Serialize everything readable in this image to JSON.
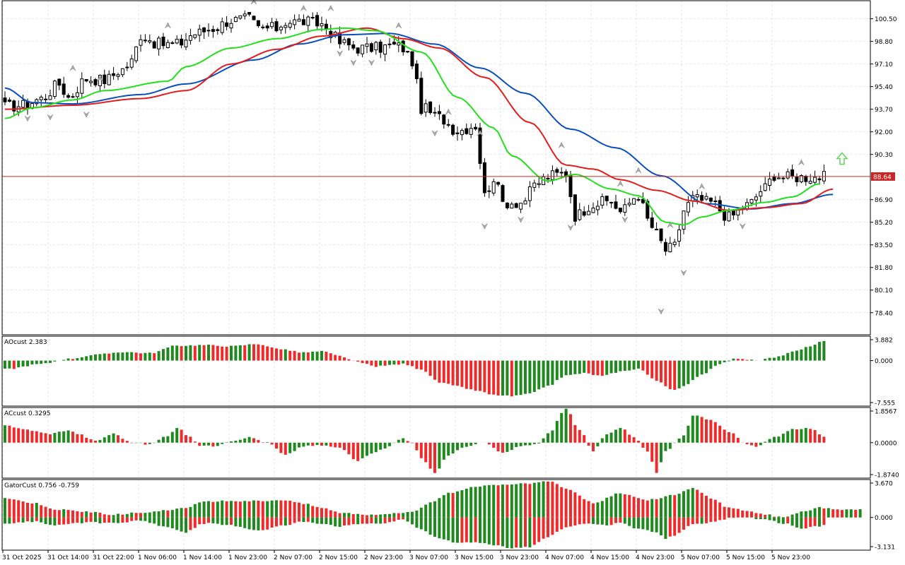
{
  "colors": {
    "background": "#ffffff",
    "grid": "#e6e6e6",
    "frame": "#000000",
    "bull_candle": "#ffffff",
    "bear_candle": "#000000",
    "jaw": "#0b4fbf",
    "teeth": "#e21d1d",
    "lips": "#22e01b",
    "osc_up": "#1e8a1e",
    "osc_down": "#ee2a2a",
    "price_line": "#c62828",
    "fractal": "#a8a8a8",
    "signal_arrow": "#5fd35f"
  },
  "chart_data": [
    {
      "type": "candlestick",
      "title": "",
      "current_price": 88.64,
      "current_price_label": "88.64",
      "signal": "up-arrow",
      "ylim": [
        76.9,
        101.7
      ],
      "y_ticks": [
        "100.50",
        "98.80",
        "97.10",
        "95.40",
        "93.70",
        "92.00",
        "90.30",
        "88.64",
        "86.90",
        "85.20",
        "83.50",
        "81.80",
        "80.10",
        "78.40"
      ],
      "x_ticks": [
        "31 Oct 2025",
        "31 Oct 14:00",
        "31 Oct 22:00",
        "1 Nov 06:00",
        "1 Nov 14:00",
        "1 Nov 23:00",
        "2 Nov 07:00",
        "2 Nov 15:00",
        "2 Nov 23:00",
        "3 Nov 07:00",
        "3 Nov 15:00",
        "3 Nov 23:00",
        "4 Nov 07:00",
        "4 Nov 15:00",
        "4 Nov 23:00",
        "5 Nov 07:00",
        "5 Nov 15:00",
        "5 Nov 23:00"
      ],
      "close_anchors": [
        [
          0,
          93.9
        ],
        [
          4,
          94.0
        ],
        [
          8,
          94.5
        ],
        [
          12,
          95.6
        ],
        [
          14,
          94.6
        ],
        [
          18,
          96.0
        ],
        [
          22,
          95.9
        ],
        [
          26,
          96.7
        ],
        [
          28,
          97.3
        ],
        [
          30,
          99.3
        ],
        [
          34,
          98.6
        ],
        [
          38,
          98.6
        ],
        [
          42,
          99.4
        ],
        [
          46,
          99.8
        ],
        [
          50,
          100.4
        ],
        [
          54,
          100.5
        ],
        [
          56,
          99.8
        ],
        [
          60,
          99.8
        ],
        [
          62,
          100.3
        ],
        [
          66,
          100.3
        ],
        [
          70,
          100.1
        ],
        [
          72,
          99.5
        ],
        [
          74,
          98.7
        ],
        [
          78,
          98.3
        ],
        [
          82,
          98.3
        ],
        [
          86,
          98.5
        ],
        [
          88,
          98.3
        ],
        [
          90,
          97.3
        ],
        [
          92,
          93.8
        ],
        [
          96,
          93.1
        ],
        [
          100,
          92.1
        ],
        [
          104,
          92.5
        ],
        [
          106,
          87.2
        ],
        [
          108,
          88.6
        ],
        [
          110,
          86.7
        ],
        [
          114,
          86.7
        ],
        [
          118,
          88.2
        ],
        [
          120,
          88.7
        ],
        [
          124,
          88.9
        ],
        [
          126,
          85.7
        ],
        [
          130,
          86.6
        ],
        [
          134,
          86.8
        ],
        [
          136,
          86.0
        ],
        [
          140,
          87.3
        ],
        [
          142,
          85.4
        ],
        [
          144,
          84.3
        ],
        [
          146,
          83.1
        ],
        [
          148,
          83.4
        ],
        [
          150,
          86.1
        ],
        [
          152,
          87.0
        ],
        [
          156,
          86.7
        ],
        [
          160,
          85.6
        ],
        [
          164,
          86.5
        ],
        [
          168,
          87.8
        ],
        [
          170,
          88.8
        ],
        [
          172,
          88.6
        ]
      ],
      "jaw_anchors": [
        [
          0,
          95.3
        ],
        [
          6,
          94.2
        ],
        [
          15,
          94.1
        ],
        [
          30,
          94.8
        ],
        [
          40,
          95.6
        ],
        [
          55,
          97.4
        ],
        [
          65,
          98.6
        ],
        [
          75,
          99.3
        ],
        [
          85,
          99.4
        ],
        [
          95,
          98.6
        ],
        [
          105,
          96.8
        ],
        [
          115,
          94.9
        ],
        [
          125,
          92.2
        ],
        [
          135,
          90.8
        ],
        [
          145,
          88.7
        ],
        [
          155,
          86.6
        ],
        [
          165,
          86.2
        ],
        [
          174,
          86.6
        ],
        [
          183,
          87.3
        ]
      ],
      "teeth_anchors": [
        [
          0,
          93.7
        ],
        [
          15,
          94.0
        ],
        [
          30,
          94.5
        ],
        [
          40,
          95.1
        ],
        [
          50,
          97.1
        ],
        [
          60,
          98.2
        ],
        [
          70,
          99.2
        ],
        [
          80,
          99.8
        ],
        [
          88,
          99.0
        ],
        [
          96,
          98.3
        ],
        [
          106,
          96.1
        ],
        [
          116,
          92.7
        ],
        [
          124,
          89.5
        ],
        [
          130,
          89.2
        ],
        [
          136,
          88.4
        ],
        [
          144,
          87.6
        ],
        [
          152,
          86.8
        ],
        [
          160,
          86.1
        ],
        [
          168,
          86.3
        ],
        [
          176,
          86.6
        ],
        [
          183,
          87.7
        ]
      ],
      "lips_anchors": [
        [
          0,
          93.0
        ],
        [
          6,
          93.8
        ],
        [
          15,
          94.4
        ],
        [
          22,
          95.1
        ],
        [
          36,
          95.8
        ],
        [
          40,
          96.9
        ],
        [
          50,
          98.3
        ],
        [
          60,
          99.0
        ],
        [
          70,
          99.7
        ],
        [
          75,
          99.8
        ],
        [
          82,
          99.6
        ],
        [
          92,
          98.0
        ],
        [
          100,
          94.6
        ],
        [
          108,
          92.3
        ],
        [
          112,
          90.2
        ],
        [
          120,
          88.3
        ],
        [
          126,
          88.8
        ],
        [
          134,
          87.7
        ],
        [
          140,
          87.2
        ],
        [
          146,
          85.2
        ],
        [
          150,
          85.0
        ],
        [
          154,
          85.6
        ],
        [
          160,
          86.1
        ],
        [
          168,
          86.7
        ],
        [
          174,
          87.1
        ],
        [
          180,
          88.1
        ]
      ],
      "fractals_up": [
        [
          15,
          96.7
        ],
        [
          21,
          95.9
        ],
        [
          36,
          99.9
        ],
        [
          55,
          101.7
        ],
        [
          66,
          101.2
        ],
        [
          72,
          101.2
        ],
        [
          87,
          99.9
        ],
        [
          98,
          93.4
        ],
        [
          105,
          91.8
        ],
        [
          123,
          90.9
        ],
        [
          136,
          88.0
        ],
        [
          140,
          89.0
        ],
        [
          147,
          84.9
        ],
        [
          154,
          87.8
        ],
        [
          176,
          89.6
        ]
      ],
      "fractals_down": [
        [
          5,
          93.1
        ],
        [
          10,
          93.2
        ],
        [
          18,
          93.4
        ],
        [
          74,
          98.0
        ],
        [
          77,
          97.3
        ],
        [
          81,
          97.3
        ],
        [
          95,
          92.0
        ],
        [
          106,
          85.0
        ],
        [
          114,
          85.5
        ],
        [
          125,
          84.9
        ],
        [
          137,
          85.5
        ],
        [
          145,
          78.6
        ],
        [
          150,
          81.5
        ],
        [
          163,
          85.0
        ]
      ]
    },
    {
      "type": "bar",
      "title": "AOcust",
      "value_label": "2.383",
      "ylim": [
        -7.555,
        3.882
      ],
      "y_ticks": [
        "3.882",
        "0.000",
        "-7.555"
      ],
      "anchors": [
        [
          0,
          -1.5
        ],
        [
          8,
          -0.6
        ],
        [
          14,
          0.3
        ],
        [
          20,
          1.0
        ],
        [
          26,
          1.5
        ],
        [
          32,
          1.3
        ],
        [
          38,
          2.6
        ],
        [
          44,
          2.7
        ],
        [
          50,
          2.5
        ],
        [
          56,
          2.9
        ],
        [
          60,
          2.1
        ],
        [
          66,
          1.4
        ],
        [
          70,
          1.6
        ],
        [
          74,
          0.8
        ],
        [
          78,
          -0.3
        ],
        [
          82,
          -1.0
        ],
        [
          88,
          -0.6
        ],
        [
          92,
          -1.5
        ],
        [
          96,
          -3.8
        ],
        [
          100,
          -4.5
        ],
        [
          104,
          -5.2
        ],
        [
          108,
          -6.0
        ],
        [
          112,
          -6.2
        ],
        [
          116,
          -5.8
        ],
        [
          120,
          -4.4
        ],
        [
          124,
          -2.6
        ],
        [
          128,
          -2.2
        ],
        [
          132,
          -2.7
        ],
        [
          136,
          -1.9
        ],
        [
          140,
          -1.4
        ],
        [
          144,
          -3.5
        ],
        [
          148,
          -5.2
        ],
        [
          150,
          -4.5
        ],
        [
          154,
          -2.4
        ],
        [
          158,
          -0.5
        ],
        [
          162,
          0.4
        ],
        [
          166,
          0.0
        ],
        [
          170,
          0.5
        ],
        [
          174,
          1.5
        ],
        [
          178,
          2.4
        ],
        [
          181,
          3.5
        ]
      ]
    },
    {
      "type": "bar",
      "title": "ACcust",
      "value_label": "0.3295",
      "ylim": [
        -1.874,
        1.8567
      ],
      "y_ticks": [
        "1.8567",
        "0.0000",
        "-1.8740"
      ],
      "anchors": [
        [
          0,
          1.0
        ],
        [
          4,
          0.75
        ],
        [
          10,
          0.5
        ],
        [
          14,
          0.7
        ],
        [
          16,
          0.5
        ],
        [
          20,
          0.1
        ],
        [
          24,
          0.5
        ],
        [
          28,
          0.0
        ],
        [
          32,
          -0.1
        ],
        [
          36,
          0.4
        ],
        [
          38,
          0.85
        ],
        [
          41,
          0.3
        ],
        [
          43,
          -0.15
        ],
        [
          46,
          -0.2
        ],
        [
          50,
          0.1
        ],
        [
          54,
          0.3
        ],
        [
          58,
          0.0
        ],
        [
          62,
          -0.7
        ],
        [
          66,
          -0.2
        ],
        [
          70,
          -0.15
        ],
        [
          74,
          -0.3
        ],
        [
          78,
          -1.0
        ],
        [
          80,
          -0.7
        ],
        [
          84,
          -0.3
        ],
        [
          88,
          0.25
        ],
        [
          90,
          0.0
        ],
        [
          92,
          -0.9
        ],
        [
          95,
          -1.7
        ],
        [
          98,
          -0.7
        ],
        [
          102,
          -0.2
        ],
        [
          106,
          0.0
        ],
        [
          110,
          -0.6
        ],
        [
          114,
          -0.2
        ],
        [
          118,
          -0.05
        ],
        [
          120,
          0.5
        ],
        [
          124,
          1.9
        ],
        [
          127,
          0.7
        ],
        [
          130,
          -0.5
        ],
        [
          133,
          0.5
        ],
        [
          136,
          0.85
        ],
        [
          139,
          0.3
        ],
        [
          142,
          -0.5
        ],
        [
          144,
          -1.7
        ],
        [
          146,
          -0.5
        ],
        [
          150,
          0.4
        ],
        [
          152,
          1.55
        ],
        [
          156,
          1.3
        ],
        [
          160,
          0.6
        ],
        [
          164,
          -0.1
        ],
        [
          166,
          -0.2
        ],
        [
          170,
          0.3
        ],
        [
          174,
          0.75
        ],
        [
          178,
          0.8
        ],
        [
          181,
          0.3
        ]
      ]
    },
    {
      "type": "bar",
      "title": "GatorCust",
      "value_label": "0.756 -0.759",
      "ylim": [
        -3.131,
        3.67
      ],
      "y_ticks": [
        "3.670",
        "0.000",
        "-3.131"
      ],
      "upper_anchors": [
        [
          0,
          2.0
        ],
        [
          6,
          1.5
        ],
        [
          12,
          0.8
        ],
        [
          18,
          0.6
        ],
        [
          24,
          0.3
        ],
        [
          30,
          0.5
        ],
        [
          36,
          0.7
        ],
        [
          40,
          1.0
        ],
        [
          44,
          1.6
        ],
        [
          50,
          1.7
        ],
        [
          56,
          1.7
        ],
        [
          62,
          1.8
        ],
        [
          66,
          1.4
        ],
        [
          70,
          1.0
        ],
        [
          74,
          0.5
        ],
        [
          80,
          0.3
        ],
        [
          86,
          0.4
        ],
        [
          90,
          0.6
        ],
        [
          94,
          1.5
        ],
        [
          98,
          2.5
        ],
        [
          104,
          3.2
        ],
        [
          110,
          3.3
        ],
        [
          116,
          3.5
        ],
        [
          120,
          3.7
        ],
        [
          124,
          3.0
        ],
        [
          130,
          1.5
        ],
        [
          136,
          2.5
        ],
        [
          142,
          1.8
        ],
        [
          148,
          2.3
        ],
        [
          152,
          3.0
        ],
        [
          156,
          2.0
        ],
        [
          160,
          1.0
        ],
        [
          164,
          0.7
        ],
        [
          168,
          0.3
        ],
        [
          172,
          0.0
        ],
        [
          176,
          0.6
        ],
        [
          180,
          1.0
        ],
        [
          185,
          0.8
        ]
      ],
      "lower_anchors": [
        [
          0,
          -0.6
        ],
        [
          6,
          -0.4
        ],
        [
          12,
          -0.8
        ],
        [
          18,
          -0.5
        ],
        [
          24,
          -0.6
        ],
        [
          30,
          -0.3
        ],
        [
          36,
          -1.0
        ],
        [
          40,
          -1.5
        ],
        [
          44,
          -0.6
        ],
        [
          50,
          -0.8
        ],
        [
          56,
          -1.3
        ],
        [
          62,
          -0.8
        ],
        [
          66,
          -0.4
        ],
        [
          70,
          -0.6
        ],
        [
          74,
          -0.9
        ],
        [
          80,
          -0.6
        ],
        [
          84,
          -0.6
        ],
        [
          88,
          -0.2
        ],
        [
          92,
          -1.2
        ],
        [
          96,
          -2.2
        ],
        [
          100,
          -2.6
        ],
        [
          104,
          -2.5
        ],
        [
          108,
          -2.8
        ],
        [
          112,
          -3.1
        ],
        [
          116,
          -3.0
        ],
        [
          120,
          -2.0
        ],
        [
          124,
          -1.0
        ],
        [
          128,
          -0.6
        ],
        [
          132,
          -0.8
        ],
        [
          136,
          -0.6
        ],
        [
          140,
          -1.2
        ],
        [
          144,
          -1.5
        ],
        [
          146,
          -2.2
        ],
        [
          148,
          -1.8
        ],
        [
          152,
          -0.7
        ],
        [
          156,
          -0.5
        ],
        [
          160,
          -0.1
        ],
        [
          164,
          0.0
        ],
        [
          168,
          -0.2
        ],
        [
          172,
          -0.6
        ],
        [
          176,
          -1.1
        ],
        [
          180,
          -0.9
        ],
        [
          182,
          -0.6
        ]
      ]
    }
  ]
}
